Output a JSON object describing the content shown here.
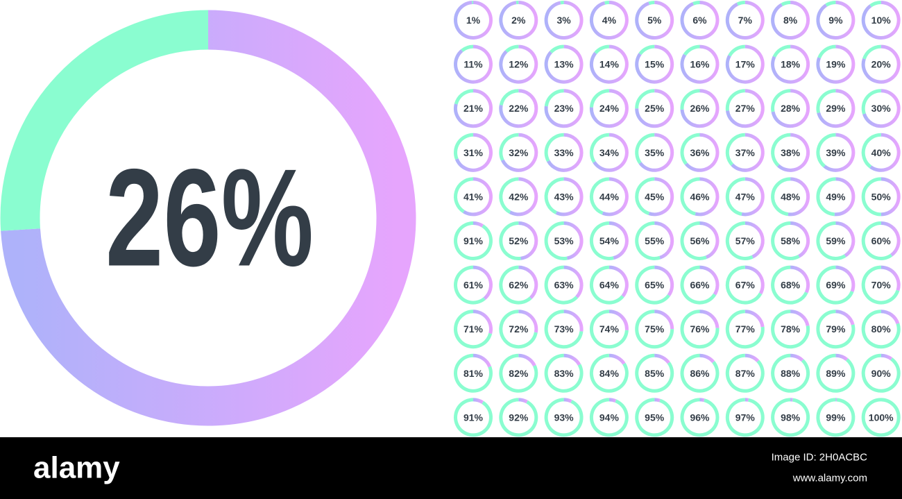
{
  "big": {
    "value": 26,
    "label": "26%"
  },
  "grid": {
    "values": [
      1,
      2,
      3,
      4,
      5,
      6,
      7,
      8,
      9,
      10,
      11,
      12,
      13,
      14,
      15,
      16,
      17,
      18,
      19,
      20,
      21,
      22,
      23,
      24,
      25,
      26,
      27,
      28,
      29,
      30,
      31,
      32,
      33,
      34,
      35,
      36,
      37,
      38,
      39,
      40,
      41,
      42,
      43,
      44,
      45,
      46,
      47,
      48,
      49,
      50,
      91,
      52,
      53,
      54,
      55,
      56,
      57,
      58,
      59,
      60,
      61,
      62,
      63,
      64,
      65,
      66,
      67,
      68,
      69,
      70,
      71,
      72,
      73,
      74,
      75,
      76,
      77,
      78,
      79,
      80,
      81,
      82,
      83,
      84,
      85,
      86,
      87,
      88,
      89,
      90,
      91,
      92,
      93,
      94,
      95,
      96,
      97,
      98,
      99,
      100
    ],
    "value_labels": [
      "1%",
      "2%",
      "3%",
      "4%",
      "5%",
      "6%",
      "7%",
      "8%",
      "9%",
      "10%",
      "11%",
      "12%",
      "13%",
      "14%",
      "15%",
      "16%",
      "17%",
      "18%",
      "19%",
      "20%",
      "21%",
      "22%",
      "23%",
      "24%",
      "25%",
      "26%",
      "27%",
      "28%",
      "29%",
      "30%",
      "31%",
      "32%",
      "33%",
      "34%",
      "35%",
      "36%",
      "37%",
      "38%",
      "39%",
      "40%",
      "41%",
      "42%",
      "43%",
      "44%",
      "45%",
      "46%",
      "47%",
      "48%",
      "49%",
      "50%",
      "91%",
      "52%",
      "53%",
      "54%",
      "55%",
      "56%",
      "57%",
      "58%",
      "59%",
      "60%",
      "61%",
      "62%",
      "63%",
      "64%",
      "65%",
      "66%",
      "67%",
      "68%",
      "69%",
      "70%",
      "71%",
      "72%",
      "73%",
      "74%",
      "75%",
      "76%",
      "77%",
      "78%",
      "79%",
      "80%",
      "81%",
      "82%",
      "83%",
      "84%",
      "85%",
      "86%",
      "87%",
      "88%",
      "89%",
      "90%",
      "91%",
      "92%",
      "93%",
      "94%",
      "95%",
      "96%",
      "97%",
      "98%",
      "99%",
      "100%"
    ]
  },
  "footer": {
    "brand": "alamy",
    "image_id": "Image ID: 2H0ACBC",
    "url": "www.alamy.com"
  }
}
